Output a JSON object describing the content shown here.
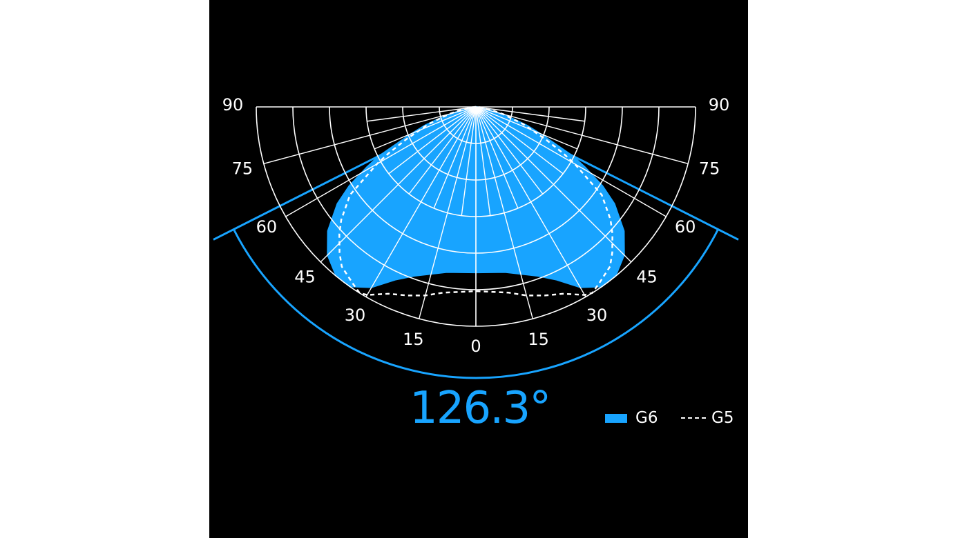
{
  "chart_data": {
    "type": "polar",
    "angle_ticks": [
      0,
      15,
      30,
      45,
      60,
      75,
      90
    ],
    "angle_tick_labels": [
      "0",
      "15",
      "30",
      "45",
      "60",
      "75",
      "90"
    ],
    "radial_unit": "relative intensity (outer ring = 1)",
    "rings": 6,
    "symmetric": true,
    "beam_angle_label": "126.3°",
    "beam_angle_deg": 126.3,
    "legend_position": "bottom-right",
    "series": [
      {
        "name": "G6",
        "style": "filled",
        "color": "#18a4ff",
        "angles": [
          0,
          10,
          20,
          25,
          30,
          35,
          40,
          45,
          50,
          55,
          58,
          61,
          63,
          65,
          67,
          70,
          72,
          75,
          80,
          85,
          90
        ],
        "values": [
          0.755,
          0.765,
          0.82,
          0.87,
          0.95,
          1.0,
          0.995,
          0.955,
          0.88,
          0.77,
          0.68,
          0.57,
          0.5,
          0.4,
          0.33,
          0.25,
          0.185,
          0.11,
          0.05,
          0.02,
          0
        ]
      },
      {
        "name": "G5",
        "style": "dashed",
        "color": "#ffffff",
        "angles": [
          0,
          10,
          15,
          20,
          25,
          30,
          32,
          35,
          40,
          43,
          47,
          50,
          55,
          60,
          62,
          65,
          70,
          75,
          80,
          85,
          90
        ],
        "values": [
          0.84,
          0.86,
          0.89,
          0.915,
          0.94,
          0.99,
          1.0,
          0.98,
          0.95,
          0.91,
          0.85,
          0.8,
          0.7,
          0.52,
          0.45,
          0.35,
          0.23,
          0.13,
          0.06,
          0.02,
          0
        ]
      }
    ]
  },
  "colors": {
    "accent": "#18a4ff",
    "background": "#000000",
    "grid": "#ffffff"
  }
}
